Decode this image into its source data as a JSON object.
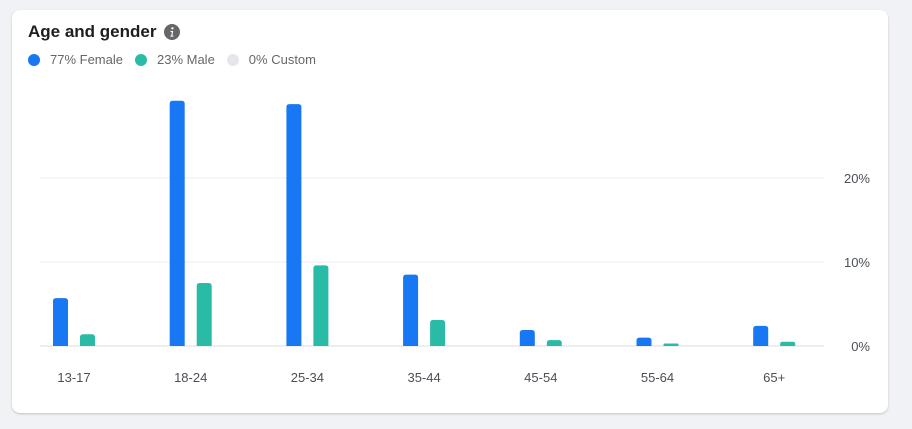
{
  "card": {
    "title": "Age and gender"
  },
  "legend": [
    {
      "label": "77% Female",
      "color": "#1877f2"
    },
    {
      "label": "23% Male",
      "color": "#2abba7"
    },
    {
      "label": "0% Custom",
      "color": "#e4e6eb"
    }
  ],
  "icons": {
    "info": "info-icon"
  },
  "chart_data": {
    "type": "bar",
    "categories": [
      "13-17",
      "18-24",
      "25-34",
      "35-44",
      "45-54",
      "55-64",
      "65+"
    ],
    "series": [
      {
        "name": "Female",
        "color": "#1877f2",
        "values": [
          5.7,
          29.2,
          28.8,
          8.5,
          1.9,
          1.0,
          2.4
        ]
      },
      {
        "name": "Male",
        "color": "#2abba7",
        "values": [
          1.4,
          7.5,
          9.6,
          3.1,
          0.7,
          0.3,
          0.5
        ]
      },
      {
        "name": "Custom",
        "color": "#e4e6eb",
        "values": [
          0,
          0,
          0,
          0,
          0,
          0,
          0
        ]
      }
    ],
    "yticks": [
      {
        "value": 0,
        "label": "0%"
      },
      {
        "value": 10,
        "label": "10%"
      },
      {
        "value": 20,
        "label": "20%"
      }
    ],
    "ylim": [
      0,
      30
    ],
    "grid": true,
    "yaxis_position": "right",
    "legend_position": "top-left"
  }
}
